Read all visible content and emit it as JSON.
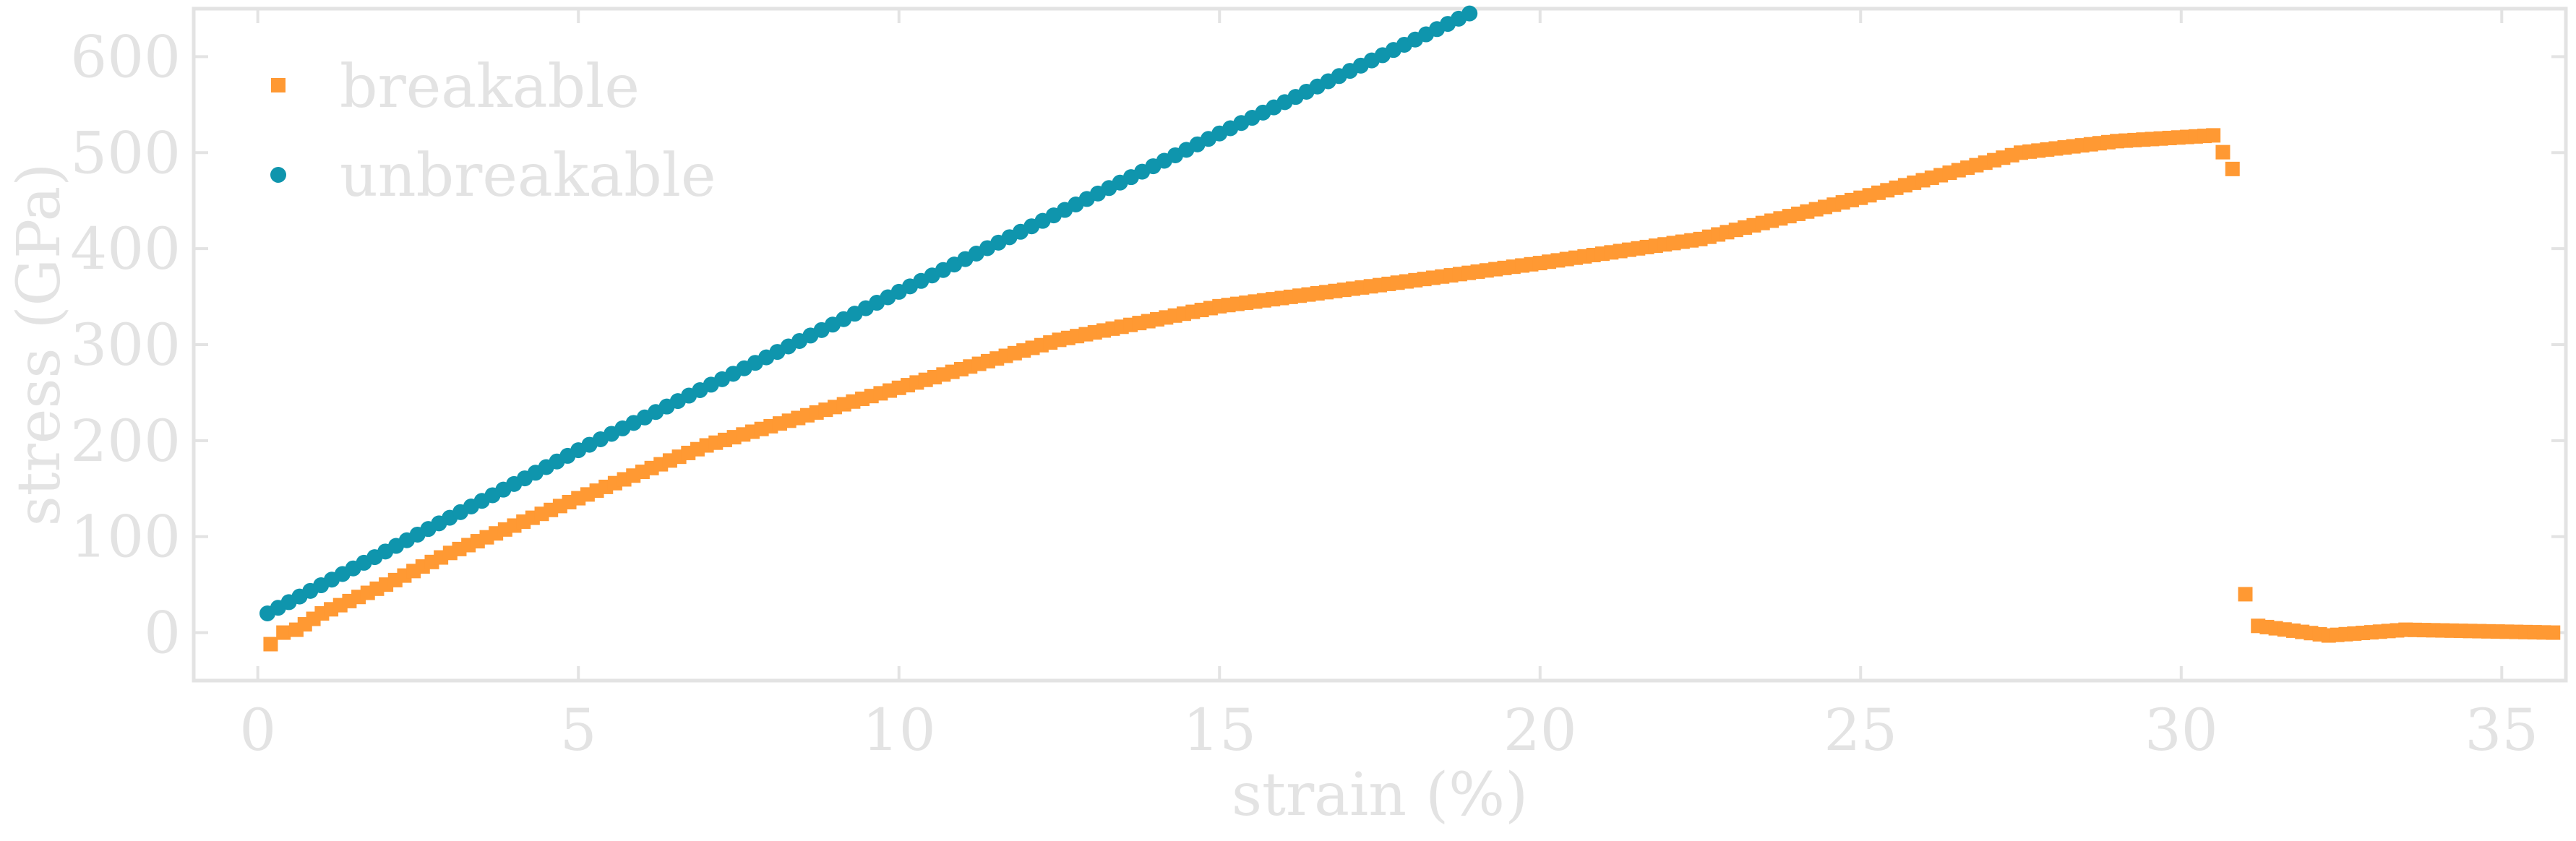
{
  "chart_data": {
    "type": "scatter",
    "title": "",
    "xlabel": "strain (%)",
    "ylabel": "stress (GPa)",
    "xlim": [
      -1,
      36
    ],
    "ylim": [
      -50,
      650
    ],
    "xticks": [
      0,
      5,
      10,
      15,
      20,
      25,
      30,
      35
    ],
    "yticks": [
      0,
      100,
      200,
      300,
      400,
      500,
      600
    ],
    "grid": false,
    "legend_position": "top-left",
    "series": [
      {
        "name": "breakable",
        "marker": "square",
        "color": "#ff9933",
        "anchor_points": [
          [
            0.2,
            -12
          ],
          [
            0.4,
            0
          ],
          [
            0.6,
            3
          ],
          [
            1,
            20
          ],
          [
            2,
            50
          ],
          [
            3,
            83
          ],
          [
            5,
            140
          ],
          [
            7,
            195
          ],
          [
            10,
            255
          ],
          [
            12.5,
            305
          ],
          [
            15,
            340
          ],
          [
            17.5,
            362
          ],
          [
            20,
            385
          ],
          [
            22.5,
            410
          ],
          [
            25,
            453
          ],
          [
            27.5,
            500
          ],
          [
            29,
            512
          ],
          [
            30.5,
            518
          ],
          [
            30.8,
            483
          ],
          [
            31,
            40
          ],
          [
            31.2,
            7
          ],
          [
            32.3,
            -3
          ],
          [
            33.5,
            3
          ],
          [
            35.8,
            0
          ]
        ]
      },
      {
        "name": "unbreakable",
        "marker": "circle",
        "color": "#0f95ad",
        "anchor_points": [
          [
            0.15,
            20
          ],
          [
            5,
            190
          ],
          [
            10,
            355
          ],
          [
            15,
            520
          ],
          [
            18.9,
            645
          ]
        ]
      }
    ]
  },
  "colors": {
    "axis": "#e3e3e3",
    "text": "#e3e3e3",
    "breakable": "#ff9933",
    "unbreakable": "#0f95ad"
  }
}
